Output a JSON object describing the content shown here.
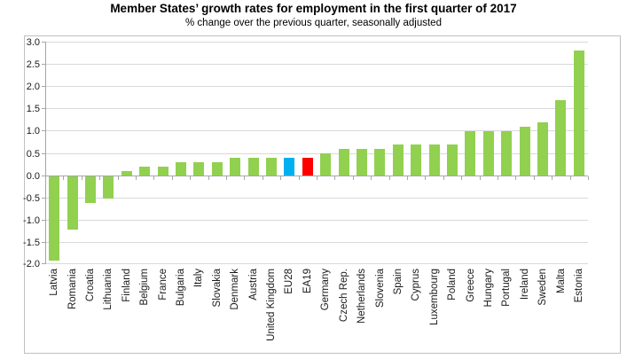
{
  "header": {
    "title": "Member States’ growth rates for employment in the first quarter of 2017",
    "subtitle": "% change over the previous quarter, seasonally adjusted"
  },
  "chart_data": {
    "type": "bar",
    "title": "Member States’ growth rates for employment in the first quarter of 2017",
    "subtitle": "% change over the previous quarter, seasonally adjusted",
    "xlabel": "",
    "ylabel": "",
    "categories": [
      "Latvia",
      "Romania",
      "Croatia",
      "Lithuania",
      "Finland",
      "Belgium",
      "France",
      "Bulgaria",
      "Italy",
      "Slovakia",
      "Denmark",
      "Austria",
      "United Kingdom",
      "EU28",
      "EA19",
      "Germany",
      "Czech Rep.",
      "Netherlands",
      "Slovenia",
      "Spain",
      "Cyprus",
      "Luxembourg",
      "Poland",
      "Greece",
      "Hungary",
      "Portugal",
      "Ireland",
      "Sweden",
      "Malta",
      "Estonia"
    ],
    "values": [
      -1.9,
      -1.2,
      -0.6,
      -0.5,
      0.1,
      0.2,
      0.2,
      0.3,
      0.3,
      0.3,
      0.4,
      0.4,
      0.4,
      0.4,
      0.4,
      0.5,
      0.6,
      0.6,
      0.6,
      0.7,
      0.7,
      0.7,
      0.7,
      1.0,
      1.0,
      1.0,
      1.1,
      1.2,
      1.7,
      2.8
    ],
    "unit": "%",
    "ylim": [
      -2.0,
      3.0
    ],
    "ytick_step": 0.5,
    "yticks": [
      "3.0",
      "2.5",
      "2.0",
      "1.5",
      "1.0",
      "0.5",
      "0.0",
      "-0.5",
      "-1.0",
      "-1.5",
      "-2.0"
    ],
    "grid": true,
    "legend_position": "none",
    "xlabel_rotation_degrees": 90,
    "bar_color": "#92D050",
    "highlighted_bars": {
      "EU28": "#00B0F0",
      "EA19": "#FF0000"
    },
    "colors": {
      "member_bar": "#92D050",
      "eu28_bar": "#00B0F0",
      "ea19_bar": "#FF0000",
      "gridline": "#D9D9D9",
      "axis": "#A6A6A6",
      "plot_border": "#C0C0C0",
      "text": "#000000"
    }
  }
}
